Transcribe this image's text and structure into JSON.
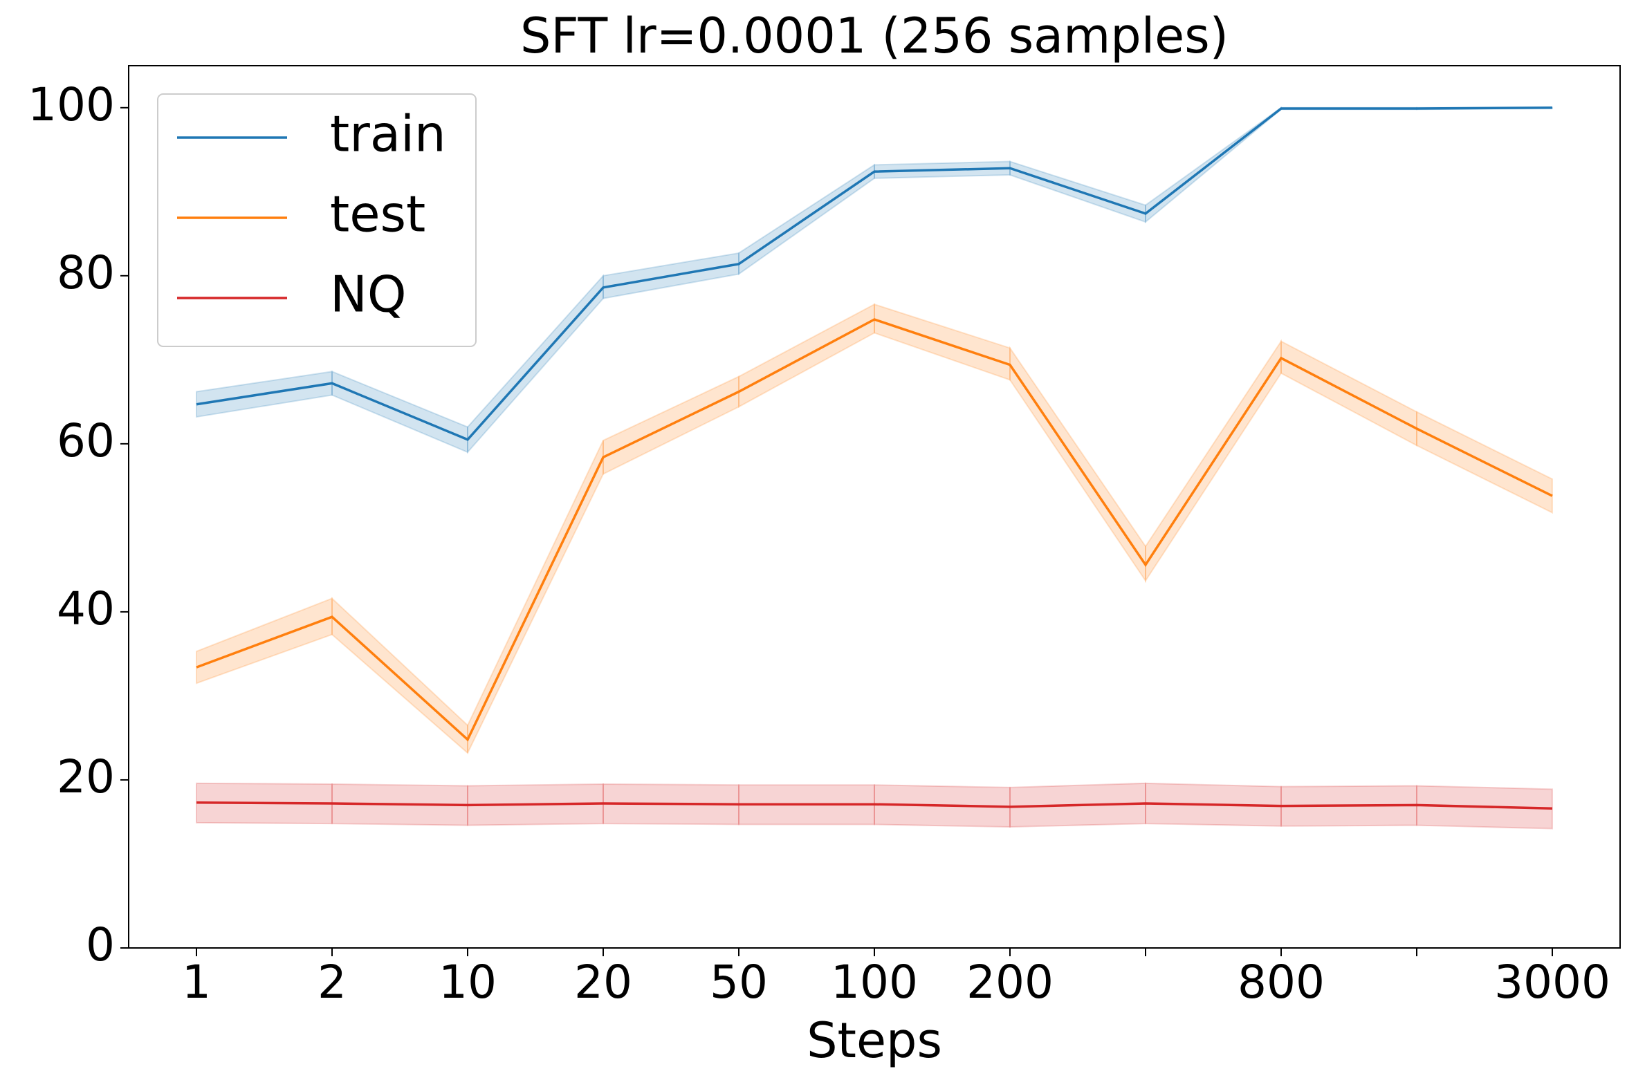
{
  "chart_data": {
    "type": "line",
    "title": "SFT lr=0.0001  (256 samples)",
    "xlabel": "Steps",
    "categories": [
      "1",
      "2",
      "10",
      "20",
      "50",
      "100",
      "200",
      null,
      "800",
      null,
      "3000"
    ],
    "series": [
      {
        "name": "train",
        "color": "#1f77b4",
        "values": [
          64.7,
          67.2,
          60.5,
          78.6,
          81.4,
          92.4,
          92.8,
          87.4,
          99.9,
          99.9,
          100
        ],
        "upper": [
          66.2,
          68.6,
          62.0,
          80.0,
          82.7,
          93.2,
          93.6,
          88.4,
          100,
          100,
          100
        ],
        "lower": [
          63.2,
          65.8,
          59.0,
          77.3,
          80.2,
          91.6,
          92.0,
          86.4,
          99.8,
          99.8,
          99.9
        ]
      },
      {
        "name": "test",
        "color": "#ff7f0e",
        "values": [
          33.4,
          39.4,
          24.8,
          58.4,
          66.2,
          74.8,
          69.4,
          45.6,
          70.2,
          61.8,
          53.8
        ],
        "upper": [
          35.3,
          41.6,
          26.5,
          60.4,
          68.0,
          76.6,
          71.4,
          47.8,
          72.2,
          63.8,
          55.8
        ],
        "lower": [
          31.5,
          37.3,
          23.2,
          56.4,
          64.4,
          73.2,
          67.6,
          43.7,
          68.4,
          59.8,
          51.8
        ]
      },
      {
        "name": "NQ",
        "color": "#d62728",
        "values": [
          17.3,
          17.2,
          17.0,
          17.2,
          17.1,
          17.1,
          16.8,
          17.2,
          16.9,
          17.0,
          16.6
        ],
        "upper": [
          19.6,
          19.5,
          19.3,
          19.5,
          19.4,
          19.4,
          19.1,
          19.6,
          19.2,
          19.3,
          18.9
        ],
        "lower": [
          14.9,
          14.8,
          14.6,
          14.8,
          14.7,
          14.7,
          14.4,
          14.8,
          14.5,
          14.6,
          14.2
        ]
      }
    ],
    "ylim": [
      0,
      105
    ],
    "yticks": [
      0,
      20,
      40,
      60,
      80,
      100
    ],
    "grid": false,
    "legend": "upper left"
  }
}
